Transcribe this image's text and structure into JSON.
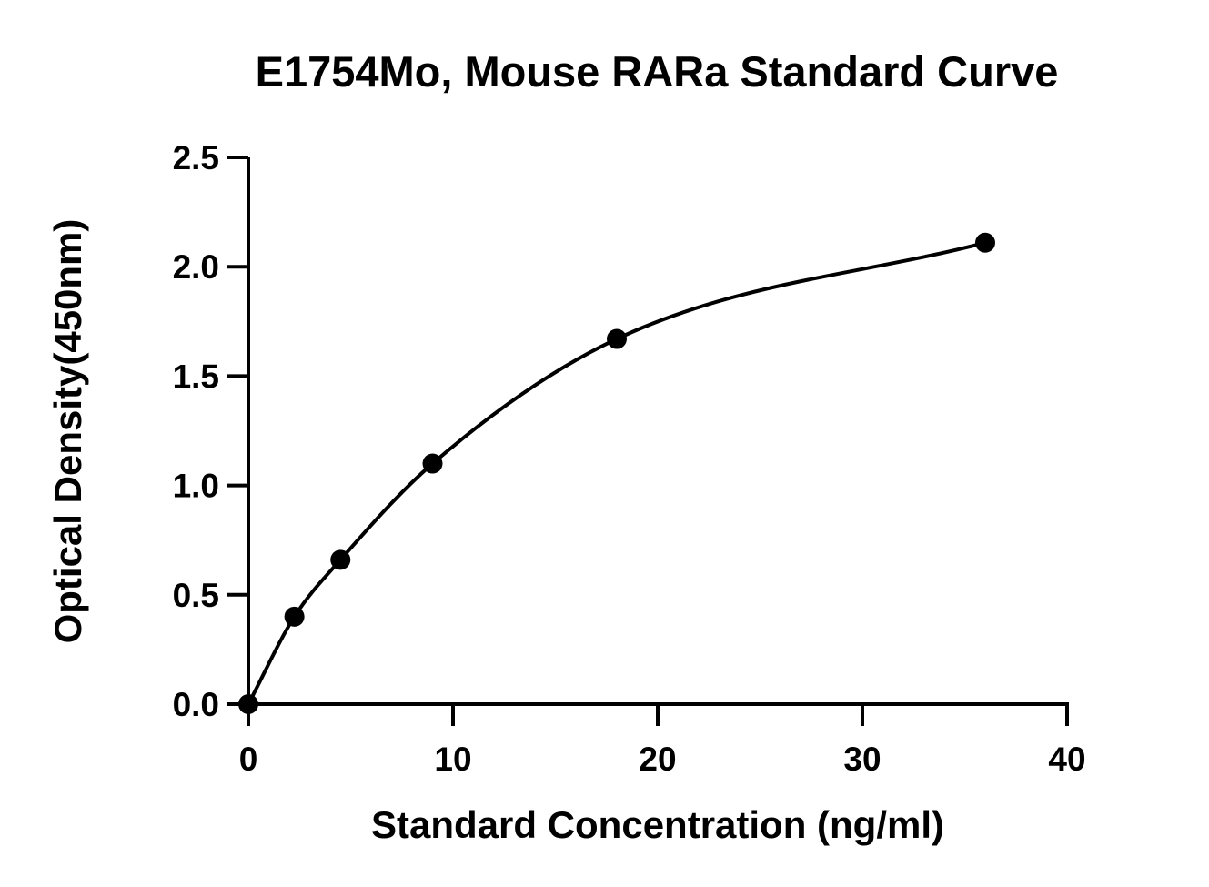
{
  "chart_data": {
    "type": "scatter",
    "title": "E1754Mo, Mouse RARa Standard Curve",
    "xlabel": "Standard Concentration (ng/ml)",
    "ylabel": "Optical Density(450nm)",
    "xlim": [
      0,
      40
    ],
    "ylim": [
      0,
      2.5
    ],
    "x_ticks": [
      0,
      10,
      20,
      30,
      40
    ],
    "x_tick_labels": [
      "0",
      "10",
      "20",
      "30",
      "40"
    ],
    "y_ticks": [
      0,
      0.5,
      1.0,
      1.5,
      2.0,
      2.5
    ],
    "y_tick_labels": [
      "0.0",
      "0.5",
      "1.0",
      "1.5",
      "2.0",
      "2.5"
    ],
    "grid": false,
    "series": [
      {
        "points": [
          {
            "x": 0,
            "y": 0.0
          },
          {
            "x": 2.25,
            "y": 0.4
          },
          {
            "x": 4.5,
            "y": 0.66
          },
          {
            "x": 9,
            "y": 1.1
          },
          {
            "x": 18,
            "y": 1.67
          },
          {
            "x": 36,
            "y": 2.11
          }
        ],
        "fit": "smooth-curve",
        "color": "#000000"
      }
    ]
  }
}
